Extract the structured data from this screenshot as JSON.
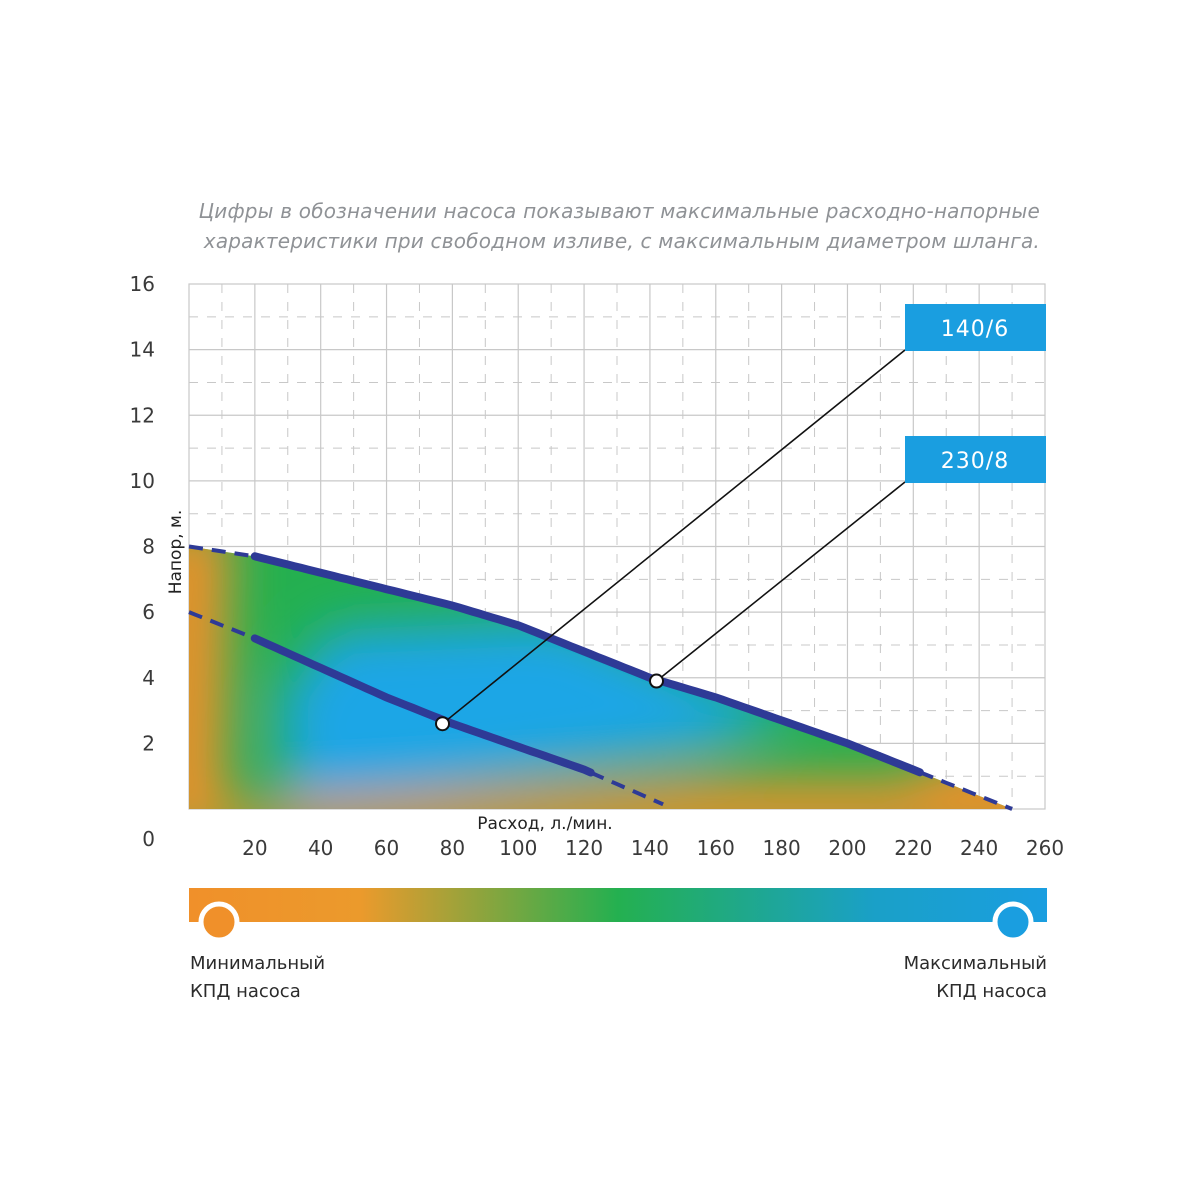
{
  "note": {
    "line1": "Цифры в обозначении насоса показывают максимальные расходно-напорные",
    "line2": "характеристики при свободном изливе, с максимальным диаметром шланга."
  },
  "colors": {
    "min_efficiency": "#f0902a",
    "mid_efficiency": "#24b050",
    "max_efficiency": "#1a9ee0",
    "curve": "#2e3a96",
    "label_box": "#1a9ee0",
    "grid": "#c8c8c8"
  },
  "chart_data": {
    "type": "line",
    "xlabel": "Расход, л./мин.",
    "ylabel": "Напор, м.",
    "xlim": [
      0,
      260
    ],
    "ylim": [
      0,
      16
    ],
    "x_ticks": [
      "20",
      "40",
      "60",
      "80",
      "100",
      "120",
      "140",
      "160",
      "180",
      "200",
      "220",
      "240",
      "260"
    ],
    "y_ticks": [
      "0",
      "2",
      "4",
      "6",
      "8",
      "10",
      "12",
      "14",
      "16"
    ],
    "grid": true,
    "series": [
      {
        "name": "230/8",
        "points": [
          [
            0,
            8.0
          ],
          [
            20,
            7.7
          ],
          [
            40,
            7.2
          ],
          [
            60,
            6.7
          ],
          [
            80,
            6.2
          ],
          [
            100,
            5.6
          ],
          [
            120,
            4.8
          ],
          [
            140,
            4.0
          ],
          [
            160,
            3.4
          ],
          [
            180,
            2.7
          ],
          [
            200,
            2.0
          ],
          [
            220,
            1.2
          ],
          [
            250,
            0.0
          ]
        ],
        "solid_range": [
          20,
          222
        ],
        "marker": [
          142,
          3.9
        ]
      },
      {
        "name": "140/6",
        "points": [
          [
            0,
            6.0
          ],
          [
            20,
            5.2
          ],
          [
            40,
            4.3
          ],
          [
            60,
            3.4
          ],
          [
            80,
            2.6
          ],
          [
            100,
            1.9
          ],
          [
            120,
            1.2
          ],
          [
            145,
            0.1
          ]
        ],
        "solid_range": [
          20,
          122
        ],
        "marker": [
          77,
          2.6
        ]
      }
    ],
    "legend_labels": [
      "140/6",
      "230/8"
    ]
  },
  "legend": {
    "min_line1": "Минимальный",
    "min_line2": "КПД насоса",
    "max_line1": "Максимальный",
    "max_line2": "КПД насоса"
  }
}
